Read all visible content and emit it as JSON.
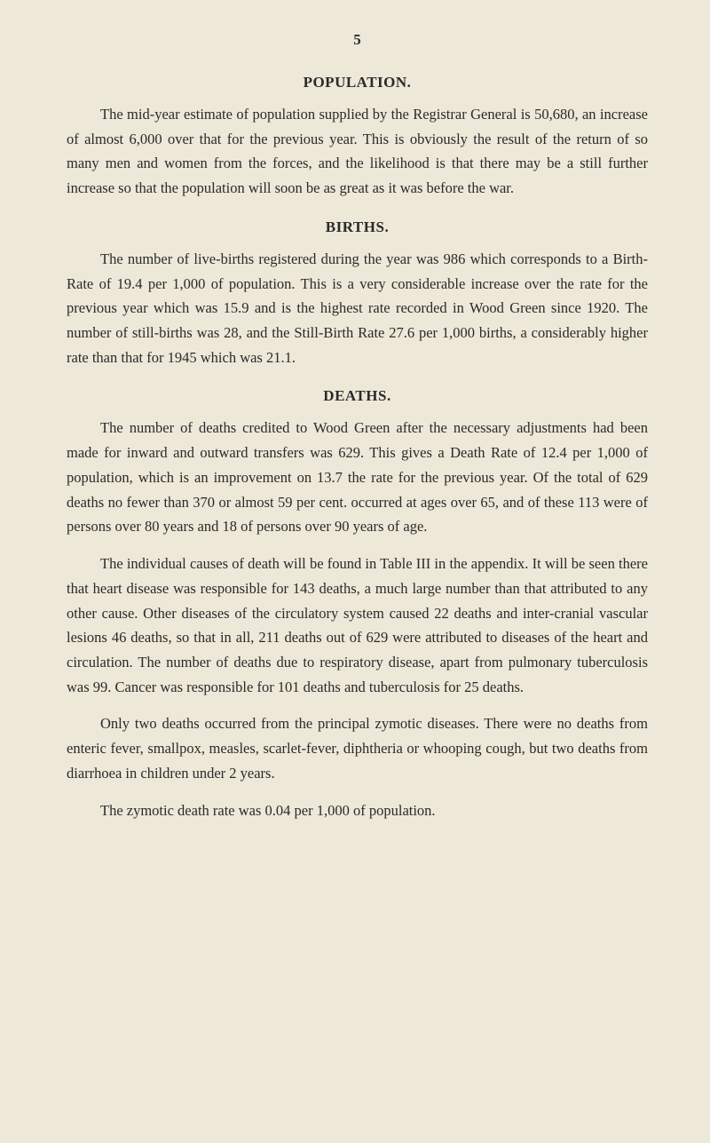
{
  "page_number": "5",
  "sections": {
    "population": {
      "heading": "POPULATION.",
      "paragraph1": "The mid-year estimate of population supplied by the Registrar General is 50,680, an increase of almost 6,000 over that for the previous year. This is obviously the result of the return of so many men and women from the forces, and the likelihood is that there may be a still further increase so that the population will soon be as great as it was before the war."
    },
    "births": {
      "heading": "BIRTHS.",
      "paragraph1": "The number of live-births registered during the year was 986 which corresponds to a Birth-Rate of 19.4 per 1,000 of population. This is a very considerable increase over the rate for the previous year which was 15.9 and is the highest rate recorded in Wood Green since 1920. The number of still-births was 28, and the Still-Birth Rate 27.6 per 1,000 births, a considerably higher rate than that for 1945 which was 21.1."
    },
    "deaths": {
      "heading": "DEATHS.",
      "paragraph1": "The number of deaths credited to Wood Green after the necessary adjustments had been made for inward and outward transfers was 629. This gives a Death Rate of 12.4 per 1,000 of population, which is an improvement on 13.7 the rate for the previous year. Of the total of 629 deaths no fewer than 370 or almost 59 per cent. occurred at ages over 65, and of these 113 were of persons over 80 years and 18 of persons over 90 years of age.",
      "paragraph2": "The individual causes of death will be found in Table III in the appendix. It will be seen there that heart disease was responsible for 143 deaths, a much large number than that attributed to any other cause. Other diseases of the circulatory system caused 22 deaths and inter-cranial vascular lesions 46 deaths, so that in all, 211 deaths out of 629 were attributed to diseases of the heart and circulation. The number of deaths due to respiratory disease, apart from pulmonary tuberculosis was 99. Cancer was responsible for 101 deaths and tuberculosis for 25 deaths.",
      "paragraph3": "Only two deaths occurred from the principal zymotic diseases. There were no deaths from enteric fever, smallpox, measles, scarlet-fever, diphtheria or whooping cough, but two deaths from diarrhoea in children under 2 years.",
      "paragraph4": "The zymotic death rate was 0.04 per 1,000 of population."
    }
  }
}
